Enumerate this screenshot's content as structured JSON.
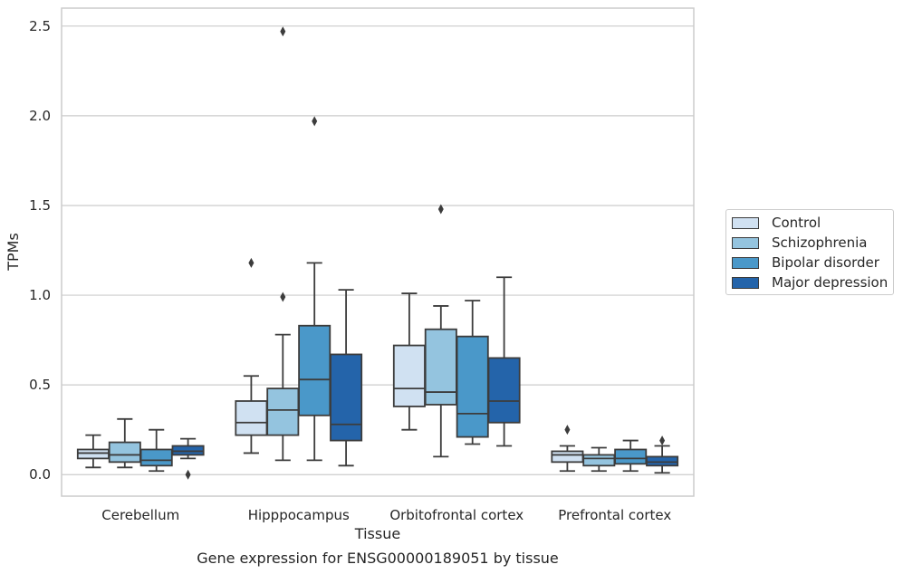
{
  "chart_data": {
    "type": "box",
    "title": "Gene expression for ENSG00000189051 by tissue",
    "xlabel": "Tissue",
    "ylabel": "TPMs",
    "ylim": [
      -0.12,
      2.6
    ],
    "yticks": [
      "0.0",
      "0.5",
      "1.0",
      "1.5",
      "2.0",
      "2.5"
    ],
    "ytick_values": [
      0,
      0.5,
      1.0,
      1.5,
      2.0,
      2.5
    ],
    "grid": true,
    "legend_position": "right, outside",
    "categories": [
      "Cerebellum",
      "Hipppocampus",
      "Orbitofrontal cortex",
      "Prefrontal cortex"
    ],
    "series": [
      {
        "name": "Control",
        "color": "#d0e1f2",
        "boxes": [
          {
            "whislo": 0.04,
            "q1": 0.09,
            "med": 0.12,
            "q3": 0.14,
            "whishi": 0.22,
            "fliers": []
          },
          {
            "whislo": 0.12,
            "q1": 0.22,
            "med": 0.29,
            "q3": 0.41,
            "whishi": 0.55,
            "fliers": [
              1.18
            ]
          },
          {
            "whislo": 0.25,
            "q1": 0.38,
            "med": 0.48,
            "q3": 0.72,
            "whishi": 1.01,
            "fliers": []
          },
          {
            "whislo": 0.02,
            "q1": 0.07,
            "med": 0.11,
            "q3": 0.13,
            "whishi": 0.16,
            "fliers": [
              0.25
            ]
          }
        ]
      },
      {
        "name": "Schizophrenia",
        "color": "#94c4df",
        "boxes": [
          {
            "whislo": 0.04,
            "q1": 0.07,
            "med": 0.11,
            "q3": 0.18,
            "whishi": 0.31,
            "fliers": []
          },
          {
            "whislo": 0.08,
            "q1": 0.22,
            "med": 0.36,
            "q3": 0.48,
            "whishi": 0.78,
            "fliers": [
              0.99,
              2.47
            ]
          },
          {
            "whislo": 0.1,
            "q1": 0.39,
            "med": 0.46,
            "q3": 0.81,
            "whishi": 0.94,
            "fliers": [
              1.48
            ]
          },
          {
            "whislo": 0.02,
            "q1": 0.05,
            "med": 0.09,
            "q3": 0.11,
            "whishi": 0.15,
            "fliers": []
          }
        ]
      },
      {
        "name": "Bipolar disorder",
        "color": "#4a98c9",
        "boxes": [
          {
            "whislo": 0.02,
            "q1": 0.05,
            "med": 0.08,
            "q3": 0.14,
            "whishi": 0.25,
            "fliers": []
          },
          {
            "whislo": 0.08,
            "q1": 0.33,
            "med": 0.53,
            "q3": 0.83,
            "whishi": 1.18,
            "fliers": [
              1.97
            ]
          },
          {
            "whislo": 0.17,
            "q1": 0.21,
            "med": 0.34,
            "q3": 0.77,
            "whishi": 0.97,
            "fliers": []
          },
          {
            "whislo": 0.02,
            "q1": 0.06,
            "med": 0.09,
            "q3": 0.14,
            "whishi": 0.19,
            "fliers": []
          }
        ]
      },
      {
        "name": "Major depression",
        "color": "#2464aa",
        "boxes": [
          {
            "whislo": 0.09,
            "q1": 0.11,
            "med": 0.13,
            "q3": 0.16,
            "whishi": 0.2,
            "fliers": [
              0.0
            ]
          },
          {
            "whislo": 0.05,
            "q1": 0.19,
            "med": 0.28,
            "q3": 0.67,
            "whishi": 1.03,
            "fliers": []
          },
          {
            "whislo": 0.16,
            "q1": 0.29,
            "med": 0.41,
            "q3": 0.65,
            "whishi": 1.1,
            "fliers": []
          },
          {
            "whislo": 0.01,
            "q1": 0.05,
            "med": 0.07,
            "q3": 0.1,
            "whishi": 0.16,
            "fliers": [
              0.19
            ]
          }
        ]
      }
    ]
  }
}
